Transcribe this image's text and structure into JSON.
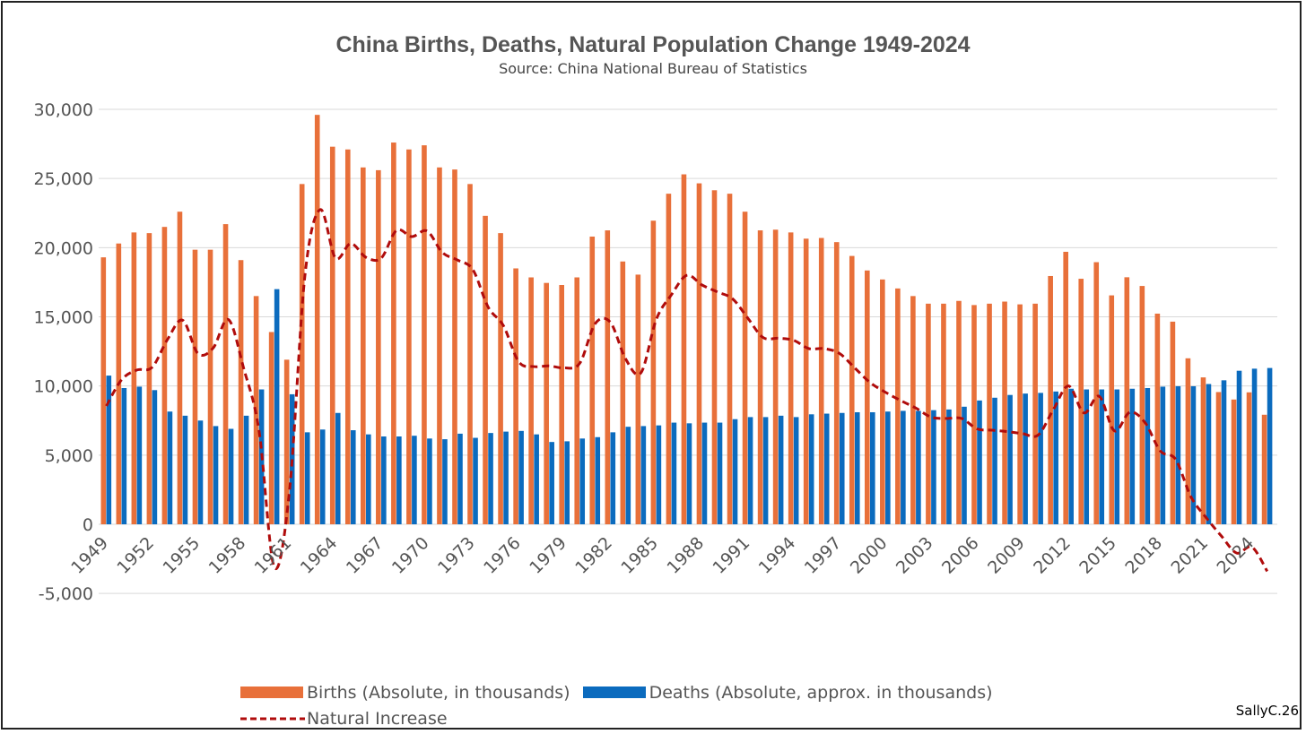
{
  "chart_data": {
    "type": "bar",
    "title": "China Births, Deaths, Natural Population Change 1949-2024",
    "subtitle": "Source: China National Bureau of Statistics",
    "xlabel": "",
    "ylabel": "",
    "ylim": [
      -5000,
      30000
    ],
    "yticks": [
      -5000,
      0,
      5000,
      10000,
      15000,
      20000,
      25000,
      30000
    ],
    "ytick_labels": [
      "-5,000",
      "0",
      "5,000",
      "10,000",
      "15,000",
      "20,000",
      "25,000",
      "30,000"
    ],
    "xtick_labels": [
      "1949",
      "1952",
      "1955",
      "1958",
      "1961",
      "1964",
      "1967",
      "1970",
      "1973",
      "1976",
      "1979",
      "1982",
      "1985",
      "1988",
      "1991",
      "1994",
      "1997",
      "2000",
      "2003",
      "2006",
      "2009",
      "2012",
      "2015",
      "2018",
      "2021",
      "2024"
    ],
    "grid": true,
    "legend_position": "bottom",
    "x": [
      1949,
      1950,
      1951,
      1952,
      1953,
      1954,
      1955,
      1956,
      1957,
      1958,
      1959,
      1960,
      1961,
      1962,
      1963,
      1964,
      1965,
      1966,
      1967,
      1968,
      1969,
      1970,
      1971,
      1972,
      1973,
      1974,
      1975,
      1976,
      1977,
      1978,
      1979,
      1980,
      1981,
      1982,
      1983,
      1984,
      1985,
      1986,
      1987,
      1988,
      1989,
      1990,
      1991,
      1992,
      1993,
      1994,
      1995,
      1996,
      1997,
      1998,
      1999,
      2000,
      2001,
      2002,
      2003,
      2004,
      2005,
      2006,
      2007,
      2008,
      2009,
      2010,
      2011,
      2012,
      2013,
      2014,
      2015,
      2016,
      2017,
      2018,
      2019,
      2020,
      2021,
      2022,
      2023,
      2024,
      2025
    ],
    "series": [
      {
        "name": "Births (Absolute, in thousands)",
        "type": "bar",
        "color": "#E8703A",
        "values": [
          19300,
          20300,
          21100,
          21050,
          21500,
          22600,
          19850,
          19850,
          21700,
          19100,
          16500,
          13900,
          11900,
          24600,
          29600,
          27300,
          27100,
          25800,
          25600,
          27600,
          27100,
          27400,
          25800,
          25650,
          24600,
          22300,
          21050,
          18500,
          17850,
          17450,
          17300,
          17850,
          20800,
          21250,
          19000,
          18050,
          21950,
          23900,
          25300,
          24650,
          24150,
          23900,
          22600,
          21250,
          21300,
          21100,
          20650,
          20700,
          20400,
          19400,
          18350,
          17700,
          17050,
          16500,
          15950,
          15950,
          16150,
          15850,
          15950,
          16100,
          15900,
          15950,
          17950,
          19700,
          17750,
          18950,
          16550,
          17860,
          17230,
          15230,
          14650,
          12000,
          10620,
          9560,
          9020,
          9540,
          7920
        ]
      },
      {
        "name": "Deaths (Absolute, approx. in thousands)",
        "type": "bar",
        "color": "#0B6BBE",
        "values": [
          10750,
          9850,
          9950,
          9700,
          8150,
          7850,
          7500,
          7100,
          6900,
          7850,
          9750,
          17000,
          9400,
          6650,
          6850,
          8050,
          6800,
          6500,
          6350,
          6350,
          6400,
          6200,
          6150,
          6550,
          6250,
          6600,
          6700,
          6750,
          6500,
          5950,
          6000,
          6200,
          6300,
          6650,
          7050,
          7100,
          7150,
          7350,
          7300,
          7350,
          7350,
          7600,
          7750,
          7750,
          7850,
          7750,
          7950,
          8000,
          8050,
          8100,
          8100,
          8150,
          8200,
          8200,
          8250,
          8300,
          8500,
          8950,
          9150,
          9350,
          9450,
          9500,
          9600,
          9800,
          9750,
          9750,
          9750,
          9800,
          9850,
          9950,
          9980,
          9980,
          10140,
          10410,
          11100,
          11250,
          11300
        ]
      },
      {
        "name": "Natural Increase",
        "type": "line",
        "color": "#B00C0C",
        "values": [
          8550,
          10450,
          11150,
          11350,
          13350,
          14750,
          12350,
          12750,
          14800,
          11250,
          6750,
          -3100,
          2500,
          17950,
          22750,
          19250,
          20300,
          19300,
          19250,
          21250,
          20800,
          21200,
          19650,
          19100,
          18400,
          15700,
          14350,
          11750,
          11400,
          11450,
          11300,
          11650,
          14500,
          14600,
          11950,
          10950,
          14800,
          16600,
          18000,
          17300,
          16800,
          16300,
          14900,
          13500,
          13450,
          13300,
          12700,
          12700,
          12350,
          11300,
          10250,
          9550,
          8950,
          8400,
          7750,
          7650,
          7650,
          6900,
          6800,
          6700,
          6550,
          6450,
          8300,
          10000,
          8050,
          9250,
          6750,
          8100,
          7350,
          5300,
          4700,
          2000,
          480,
          -850,
          -2080,
          -1650,
          -3400
        ]
      }
    ]
  },
  "credit": "SallyC.26"
}
